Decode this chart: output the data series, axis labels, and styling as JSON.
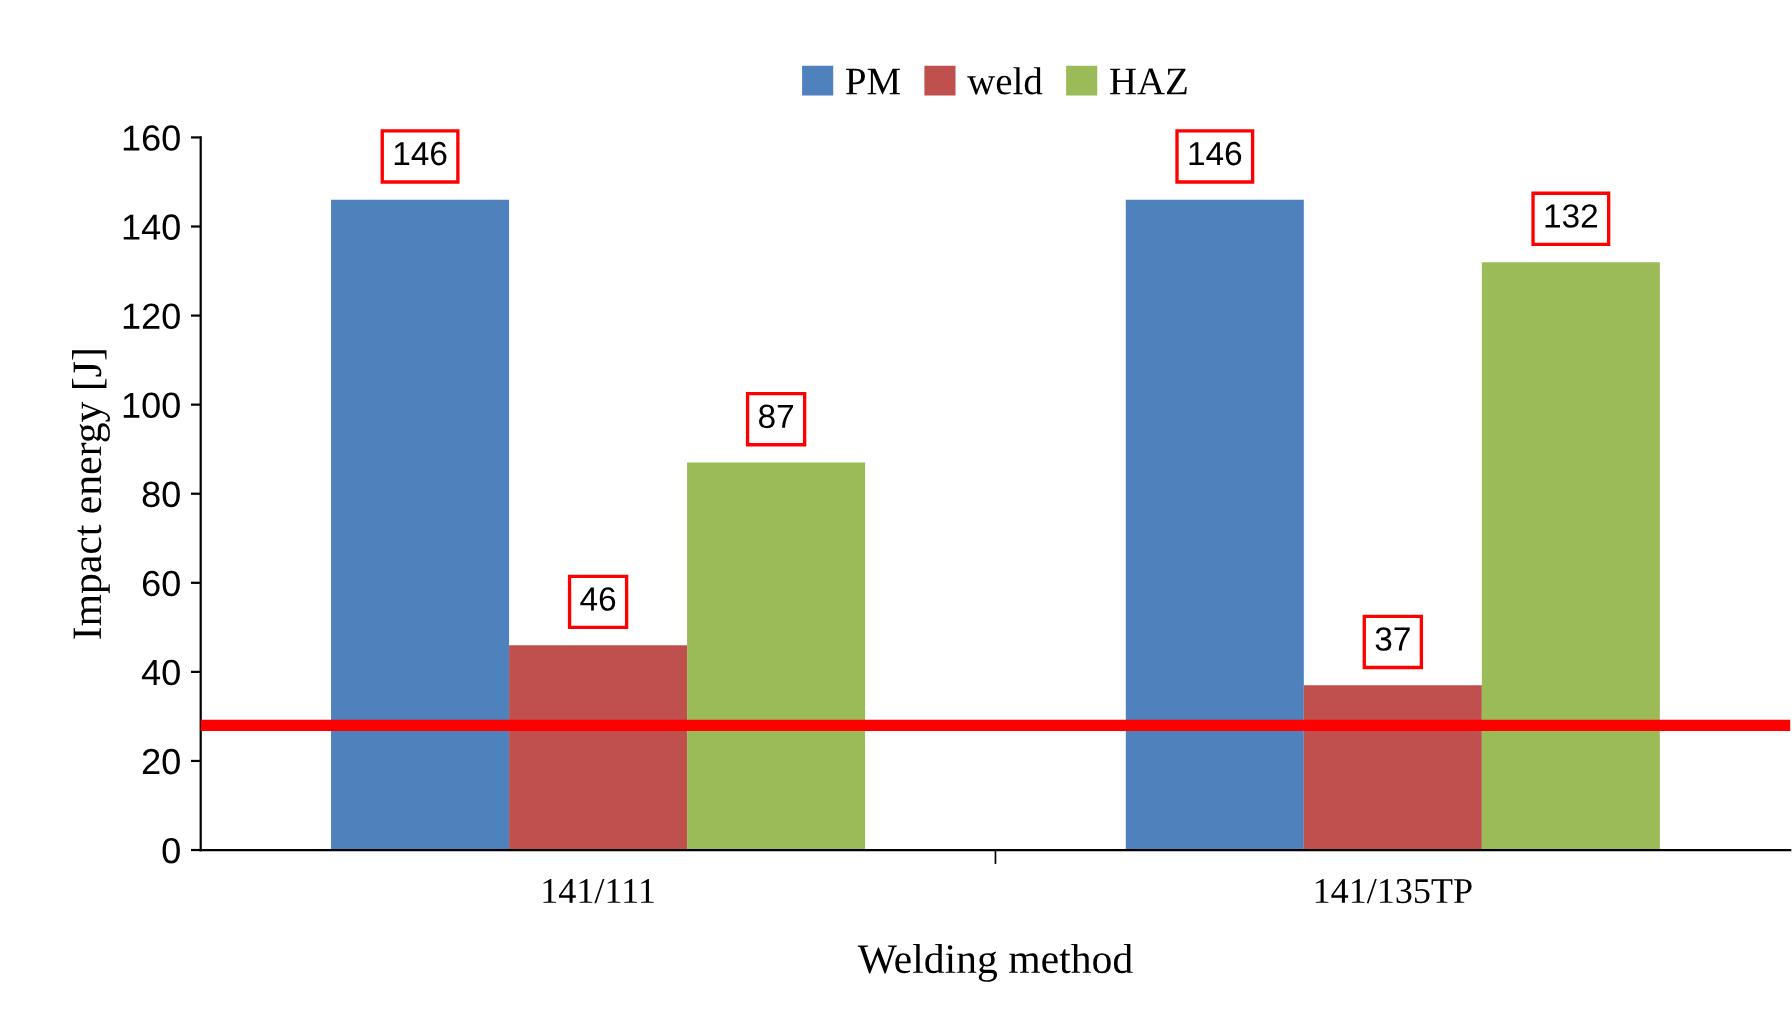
{
  "chart_data": {
    "type": "bar",
    "xlabel": "Welding method",
    "ylabel": "Impact energy [J]",
    "categories": [
      "141/111",
      "141/135TP"
    ],
    "series": [
      {
        "name": "PM",
        "color": "#4f81bd",
        "values": [
          146,
          146
        ]
      },
      {
        "name": "weld",
        "color": "#c0504d",
        "values": [
          46,
          37
        ]
      },
      {
        "name": "HAZ",
        "color": "#9bbb59",
        "values": [
          87,
          132
        ]
      }
    ],
    "ylim": [
      0,
      160
    ],
    "yticks": [
      0,
      20,
      40,
      60,
      80,
      100,
      120,
      140,
      160
    ],
    "ref_lines": [
      {
        "axis": "y",
        "value": 28,
        "color": "#ff0000",
        "line_style": "solid"
      }
    ],
    "data_labels": true,
    "grid": false,
    "legend": "top"
  }
}
